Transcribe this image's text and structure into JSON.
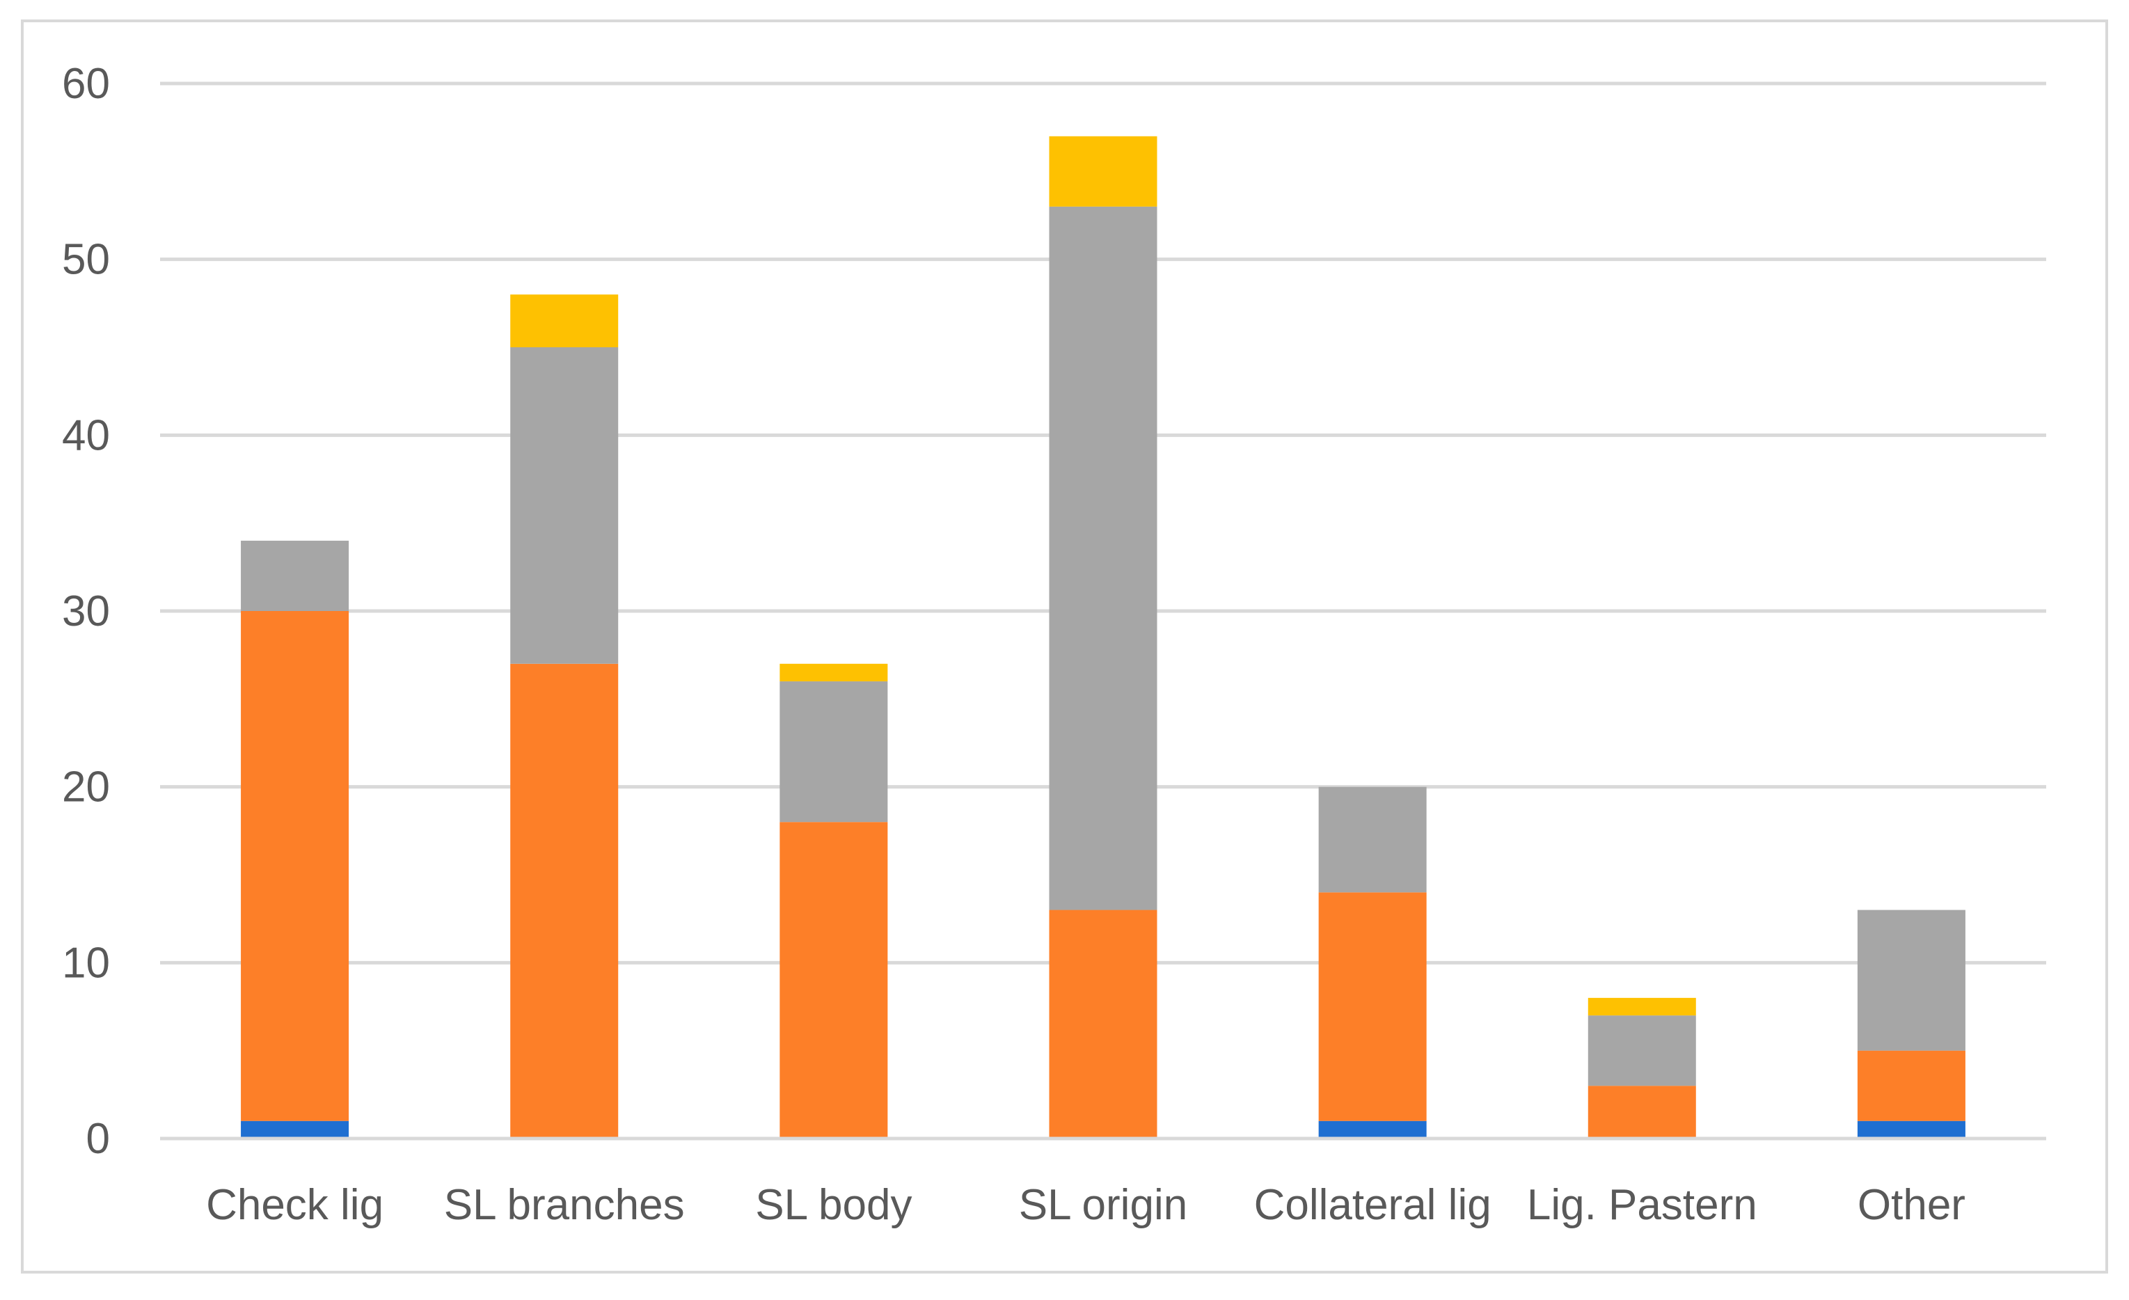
{
  "chart_data": {
    "type": "bar",
    "stacked": true,
    "title": "",
    "xlabel": "",
    "ylabel": "",
    "ylim": [
      0,
      60
    ],
    "yticks": [
      "0",
      "10",
      "20",
      "30",
      "40",
      "50",
      "60"
    ],
    "grid": true,
    "legend": "none",
    "categories": [
      "Check lig",
      "SL branches",
      "SL body",
      "SL origin",
      "Collateral lig",
      "Lig. Pastern",
      "Other"
    ],
    "series": [
      {
        "color": "#1f6fd1",
        "values": [
          1,
          0,
          0,
          0,
          1,
          0,
          1
        ]
      },
      {
        "color": "#fd7f28",
        "values": [
          29,
          27,
          18,
          13,
          13,
          3,
          4
        ]
      },
      {
        "color": "#a6a6a6",
        "values": [
          4,
          18,
          8,
          40,
          6,
          4,
          8
        ]
      },
      {
        "color": "#fec101",
        "values": [
          0,
          3,
          1,
          4,
          0,
          1,
          0
        ]
      }
    ]
  }
}
